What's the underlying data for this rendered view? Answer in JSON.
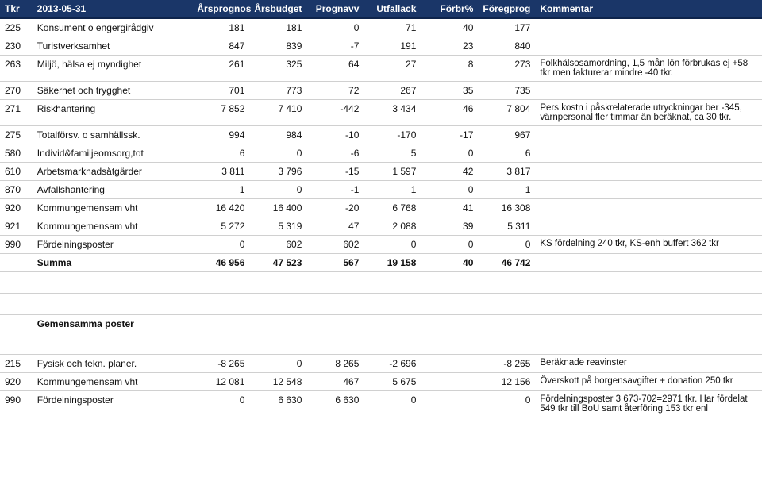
{
  "header": {
    "cols": [
      "Tkr",
      "2013-05-31",
      "Årsprognos",
      "Årsbudget",
      "Prognavv",
      "Utfallack",
      "Förbr%",
      "Föregprog",
      "Kommentar"
    ]
  },
  "rows": [
    {
      "id": "225",
      "name": "Konsument o engergirådgiv",
      "c": [
        "181",
        "181",
        "0",
        "71",
        "40",
        "177"
      ],
      "comment": ""
    },
    {
      "id": "230",
      "name": "Turistverksamhet",
      "c": [
        "847",
        "839",
        "-7",
        "191",
        "23",
        "840"
      ],
      "comment": "",
      "sep": true
    },
    {
      "id": "263",
      "name": "Miljö, hälsa ej myndighet",
      "c": [
        "261",
        "325",
        "64",
        "27",
        "8",
        "273"
      ],
      "comment": "Folkhälsosamordning, 1,5 mån lön förbrukas ej +58 tkr men fakturerar mindre -40 tkr.",
      "sep": true
    },
    {
      "id": "270",
      "name": "Säkerhet och trygghet",
      "c": [
        "701",
        "773",
        "72",
        "267",
        "35",
        "735"
      ],
      "comment": ""
    },
    {
      "id": "271",
      "name": "Riskhantering",
      "c": [
        "7 852",
        "7 410",
        "-442",
        "3 434",
        "46",
        "7 804"
      ],
      "comment": "Pers.kostn i påskrelaterade utryckningar ber -345, värnpersonal fler timmar än beräknat, ca 30 tkr.",
      "sep": true
    },
    {
      "id": "275",
      "name": "Totalförsv. o samhällssk.",
      "c": [
        "994",
        "984",
        "-10",
        "-170",
        "-17",
        "967"
      ],
      "comment": ""
    },
    {
      "id": "580",
      "name": "Individ&familjeomsorg,tot",
      "c": [
        "6",
        "0",
        "-6",
        "5",
        "0",
        "6"
      ],
      "comment": "",
      "sep": true
    },
    {
      "id": "610",
      "name": "Arbetsmarknadsåtgärder",
      "c": [
        "3 811",
        "3 796",
        "-15",
        "1 597",
        "42",
        "3 817"
      ],
      "comment": "",
      "sep": true
    },
    {
      "id": "870",
      "name": "Avfallshantering",
      "c": [
        "1",
        "0",
        "-1",
        "1",
        "0",
        "1"
      ],
      "comment": "",
      "sep": true
    },
    {
      "id": "920",
      "name": "Kommungemensam vht",
      "c": [
        "16 420",
        "16 400",
        "-20",
        "6 768",
        "41",
        "16 308"
      ],
      "comment": "",
      "sep": true
    },
    {
      "id": "921",
      "name": "Kommungemensam vht",
      "c": [
        "5 272",
        "5 319",
        "47",
        "2 088",
        "39",
        "5 311"
      ],
      "comment": "",
      "sep": true
    },
    {
      "id": "990",
      "name": "Fördelningsposter",
      "c": [
        "0",
        "602",
        "602",
        "0",
        "0",
        "0"
      ],
      "comment": "KS fördelning 240 tkr, KS-enh buffert 362 tkr",
      "sep": true
    },
    {
      "id": "",
      "name": "Summa",
      "c": [
        "46 956",
        "47 523",
        "567",
        "19 158",
        "40",
        "46 742"
      ],
      "comment": "",
      "bold": true
    },
    {
      "blank": true
    },
    {
      "blank": true
    },
    {
      "id": "",
      "name": "Gemensamma poster",
      "c": [
        "",
        "",
        "",
        "",
        "",
        ""
      ],
      "comment": "",
      "bold": true,
      "sep": true
    },
    {
      "blank": true
    },
    {
      "id": "215",
      "name": "Fysisk och tekn. planer.",
      "c": [
        "-8 265",
        "0",
        "8 265",
        "-2 696",
        "",
        "-8 265"
      ],
      "comment": "Beräknade reavinster",
      "sep": true
    },
    {
      "id": "920",
      "name": "Kommungemensam vht",
      "c": [
        "12 081",
        "12 548",
        "467",
        "5 675",
        "",
        "12 156"
      ],
      "comment": "Överskott på borgensavgifter + donation 250 tkr",
      "sep": true
    },
    {
      "id": "990",
      "name": "Fördelningsposter",
      "c": [
        "0",
        "6 630",
        "6 630",
        "0",
        "",
        "0"
      ],
      "comment": "Fördelningsposter 3 673-702=2971 tkr. Har fördelat 549 tkr till BoU samt återföring 153 tkr enl",
      "sep": true
    }
  ]
}
